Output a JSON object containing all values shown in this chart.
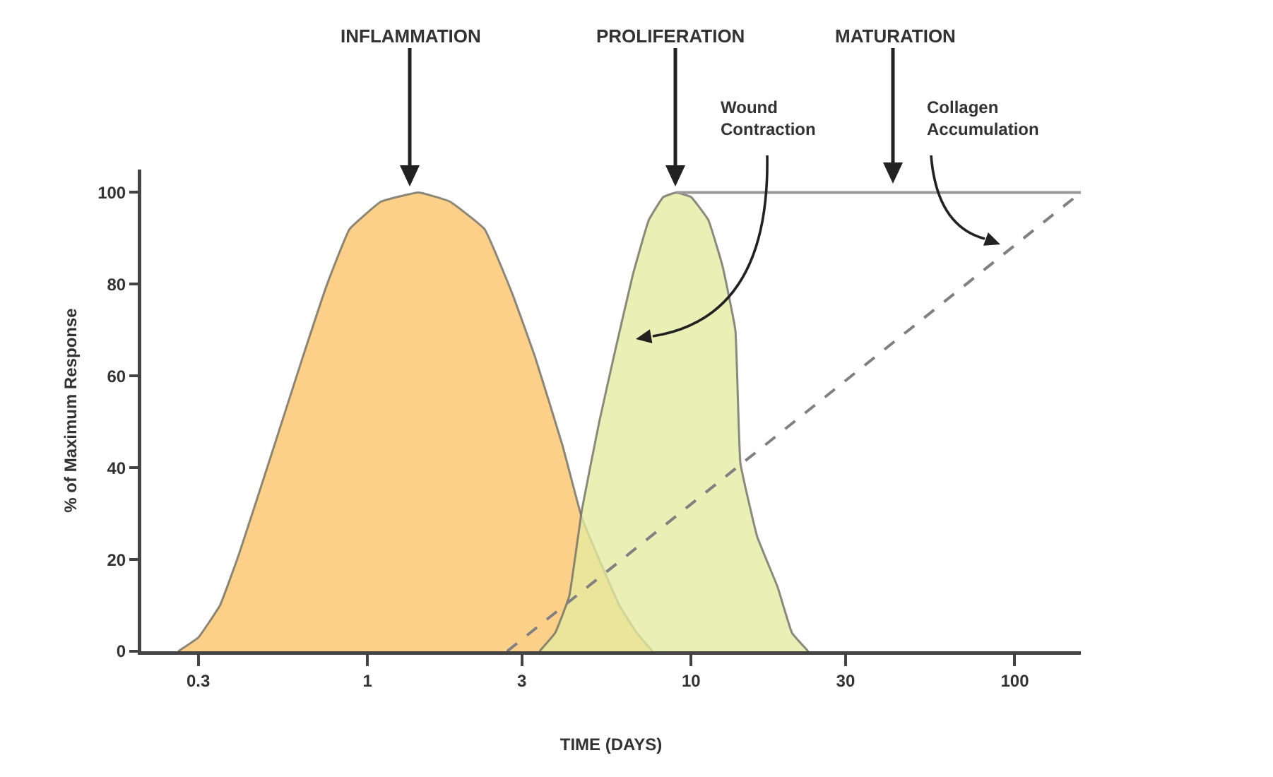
{
  "chart_data": {
    "type": "area",
    "xlabel": "TIME (DAYS)",
    "ylabel": "% of Maximum Response",
    "log": "x",
    "xlim": [
      0.2,
      160
    ],
    "xticks": [
      0.3,
      1,
      3,
      10,
      30,
      100
    ],
    "ylim": [
      0,
      105
    ],
    "yticks": [
      0,
      20,
      40,
      60,
      80,
      100
    ],
    "grid": false,
    "series": [
      {
        "color": "#fdd08a",
        "x": [
          0.26,
          0.3,
          0.35,
          0.4,
          0.5,
          0.63,
          0.75,
          0.88,
          1.1,
          1.44,
          1.8,
          2.3,
          2.8,
          3.3,
          4.0,
          4.6,
          5.2,
          6.0,
          6.8,
          7.6
        ],
        "values": [
          0,
          3,
          10,
          21,
          42,
          64,
          80,
          92,
          98,
          100,
          98,
          92,
          78,
          64,
          45,
          29,
          20,
          10,
          4,
          0
        ]
      },
      {
        "color": "#e4eaa0",
        "x": [
          3.4,
          3.8,
          4.2,
          4.6,
          5.2,
          5.8,
          6.6,
          7.4,
          8.2,
          9.0,
          10.0,
          11.3,
          12.5,
          13.7,
          14.2,
          16.0,
          18.5,
          20.5,
          23.0
        ],
        "values": [
          0,
          4,
          12,
          31,
          50,
          65,
          82,
          94,
          99,
          100,
          99,
          94,
          84,
          70,
          41,
          25,
          14,
          4,
          0
        ]
      },
      {
        "type": "line",
        "color": "#9a9a9a",
        "line_style": "solid",
        "x": [
          9.0,
          160
        ],
        "values": [
          100,
          100
        ]
      },
      {
        "type": "line",
        "color": "#808080",
        "line_style": "dashed",
        "x": [
          2.7,
          160
        ],
        "values": [
          0,
          100
        ]
      }
    ],
    "annotations": [
      "INFLAMMATION",
      "PROLIFERATION",
      "MATURATION",
      "Wound Contraction",
      "Collagen Accumulation"
    ]
  }
}
